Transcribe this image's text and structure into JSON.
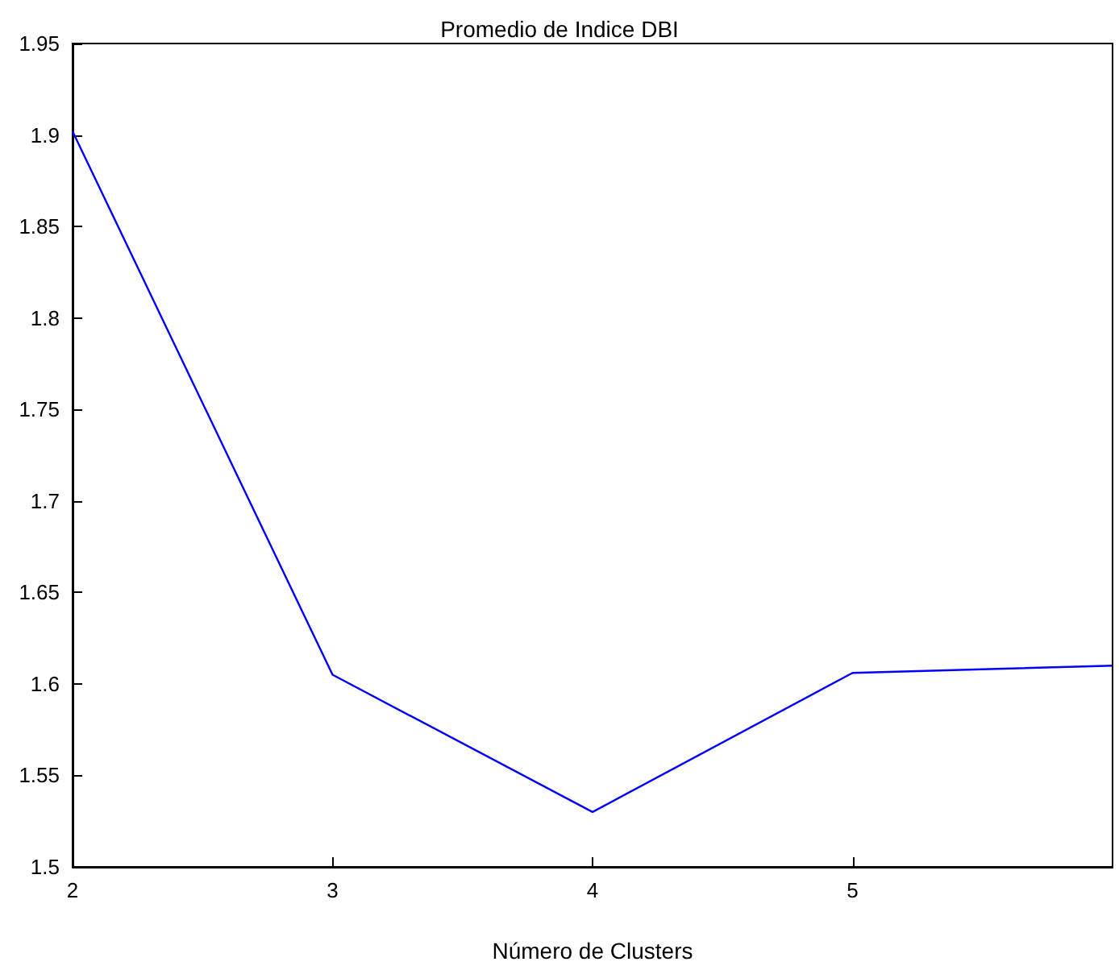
{
  "chart_data": {
    "type": "line",
    "title": "Promedio de Indice DBI",
    "xlabel": "Número de Clusters",
    "x": [
      2,
      3,
      4,
      5,
      6
    ],
    "series": [
      {
        "color": "#0000ff",
        "values": [
          1.902,
          1.605,
          1.53,
          1.606,
          1.61
        ]
      }
    ],
    "xlim": [
      2,
      6
    ],
    "xticks": [
      2,
      3,
      4,
      5
    ],
    "ylim": [
      1.5,
      1.95
    ],
    "yticks": [
      1.5,
      1.55,
      1.6,
      1.65,
      1.7,
      1.75,
      1.8,
      1.85,
      1.9,
      1.95
    ],
    "grid": false,
    "marker": "none",
    "line_style": "solid"
  }
}
